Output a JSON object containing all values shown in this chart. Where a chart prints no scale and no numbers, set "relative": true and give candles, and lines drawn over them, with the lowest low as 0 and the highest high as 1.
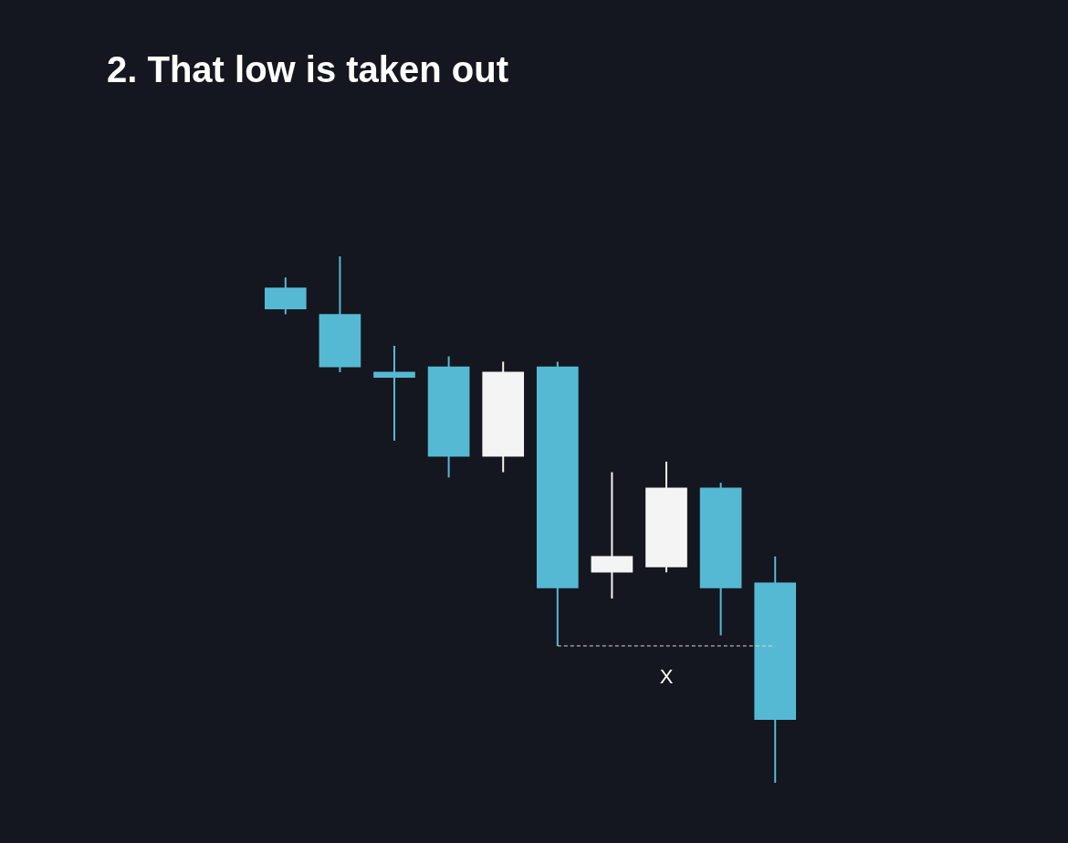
{
  "chart_data": {
    "type": "candlestick",
    "title": "2. That low is taken out",
    "categories": [
      null,
      null,
      null,
      null,
      null,
      null,
      null,
      null,
      null,
      null
    ],
    "ohlc": [
      [
        0.94,
        0.96,
        0.89,
        0.9
      ],
      [
        0.89,
        1.0,
        0.78,
        0.79
      ],
      [
        0.78,
        0.83,
        0.65,
        0.77
      ],
      [
        0.79,
        0.81,
        0.58,
        0.62
      ],
      [
        0.62,
        0.8,
        0.59,
        0.78
      ],
      [
        0.79,
        0.8,
        0.26,
        0.37
      ],
      [
        0.4,
        0.59,
        0.35,
        0.43
      ],
      [
        0.41,
        0.61,
        0.4,
        0.56
      ],
      [
        0.56,
        0.57,
        0.28,
        0.37
      ],
      [
        0.38,
        0.43,
        0.0,
        0.12
      ]
    ],
    "colors": [
      "#56b9d4",
      "#56b9d4",
      "#56b9d4",
      "#56b9d4",
      "#f4f4f4",
      "#56b9d4",
      "#f4f4f4",
      "#f4f4f4",
      "#56b9d4",
      "#56b9d4"
    ],
    "relative": true,
    "ref_lines": [
      {
        "axis": "y",
        "value": 0.26,
        "label": "X",
        "color": "#d8d8d8",
        "line_style": "dashed"
      }
    ]
  }
}
